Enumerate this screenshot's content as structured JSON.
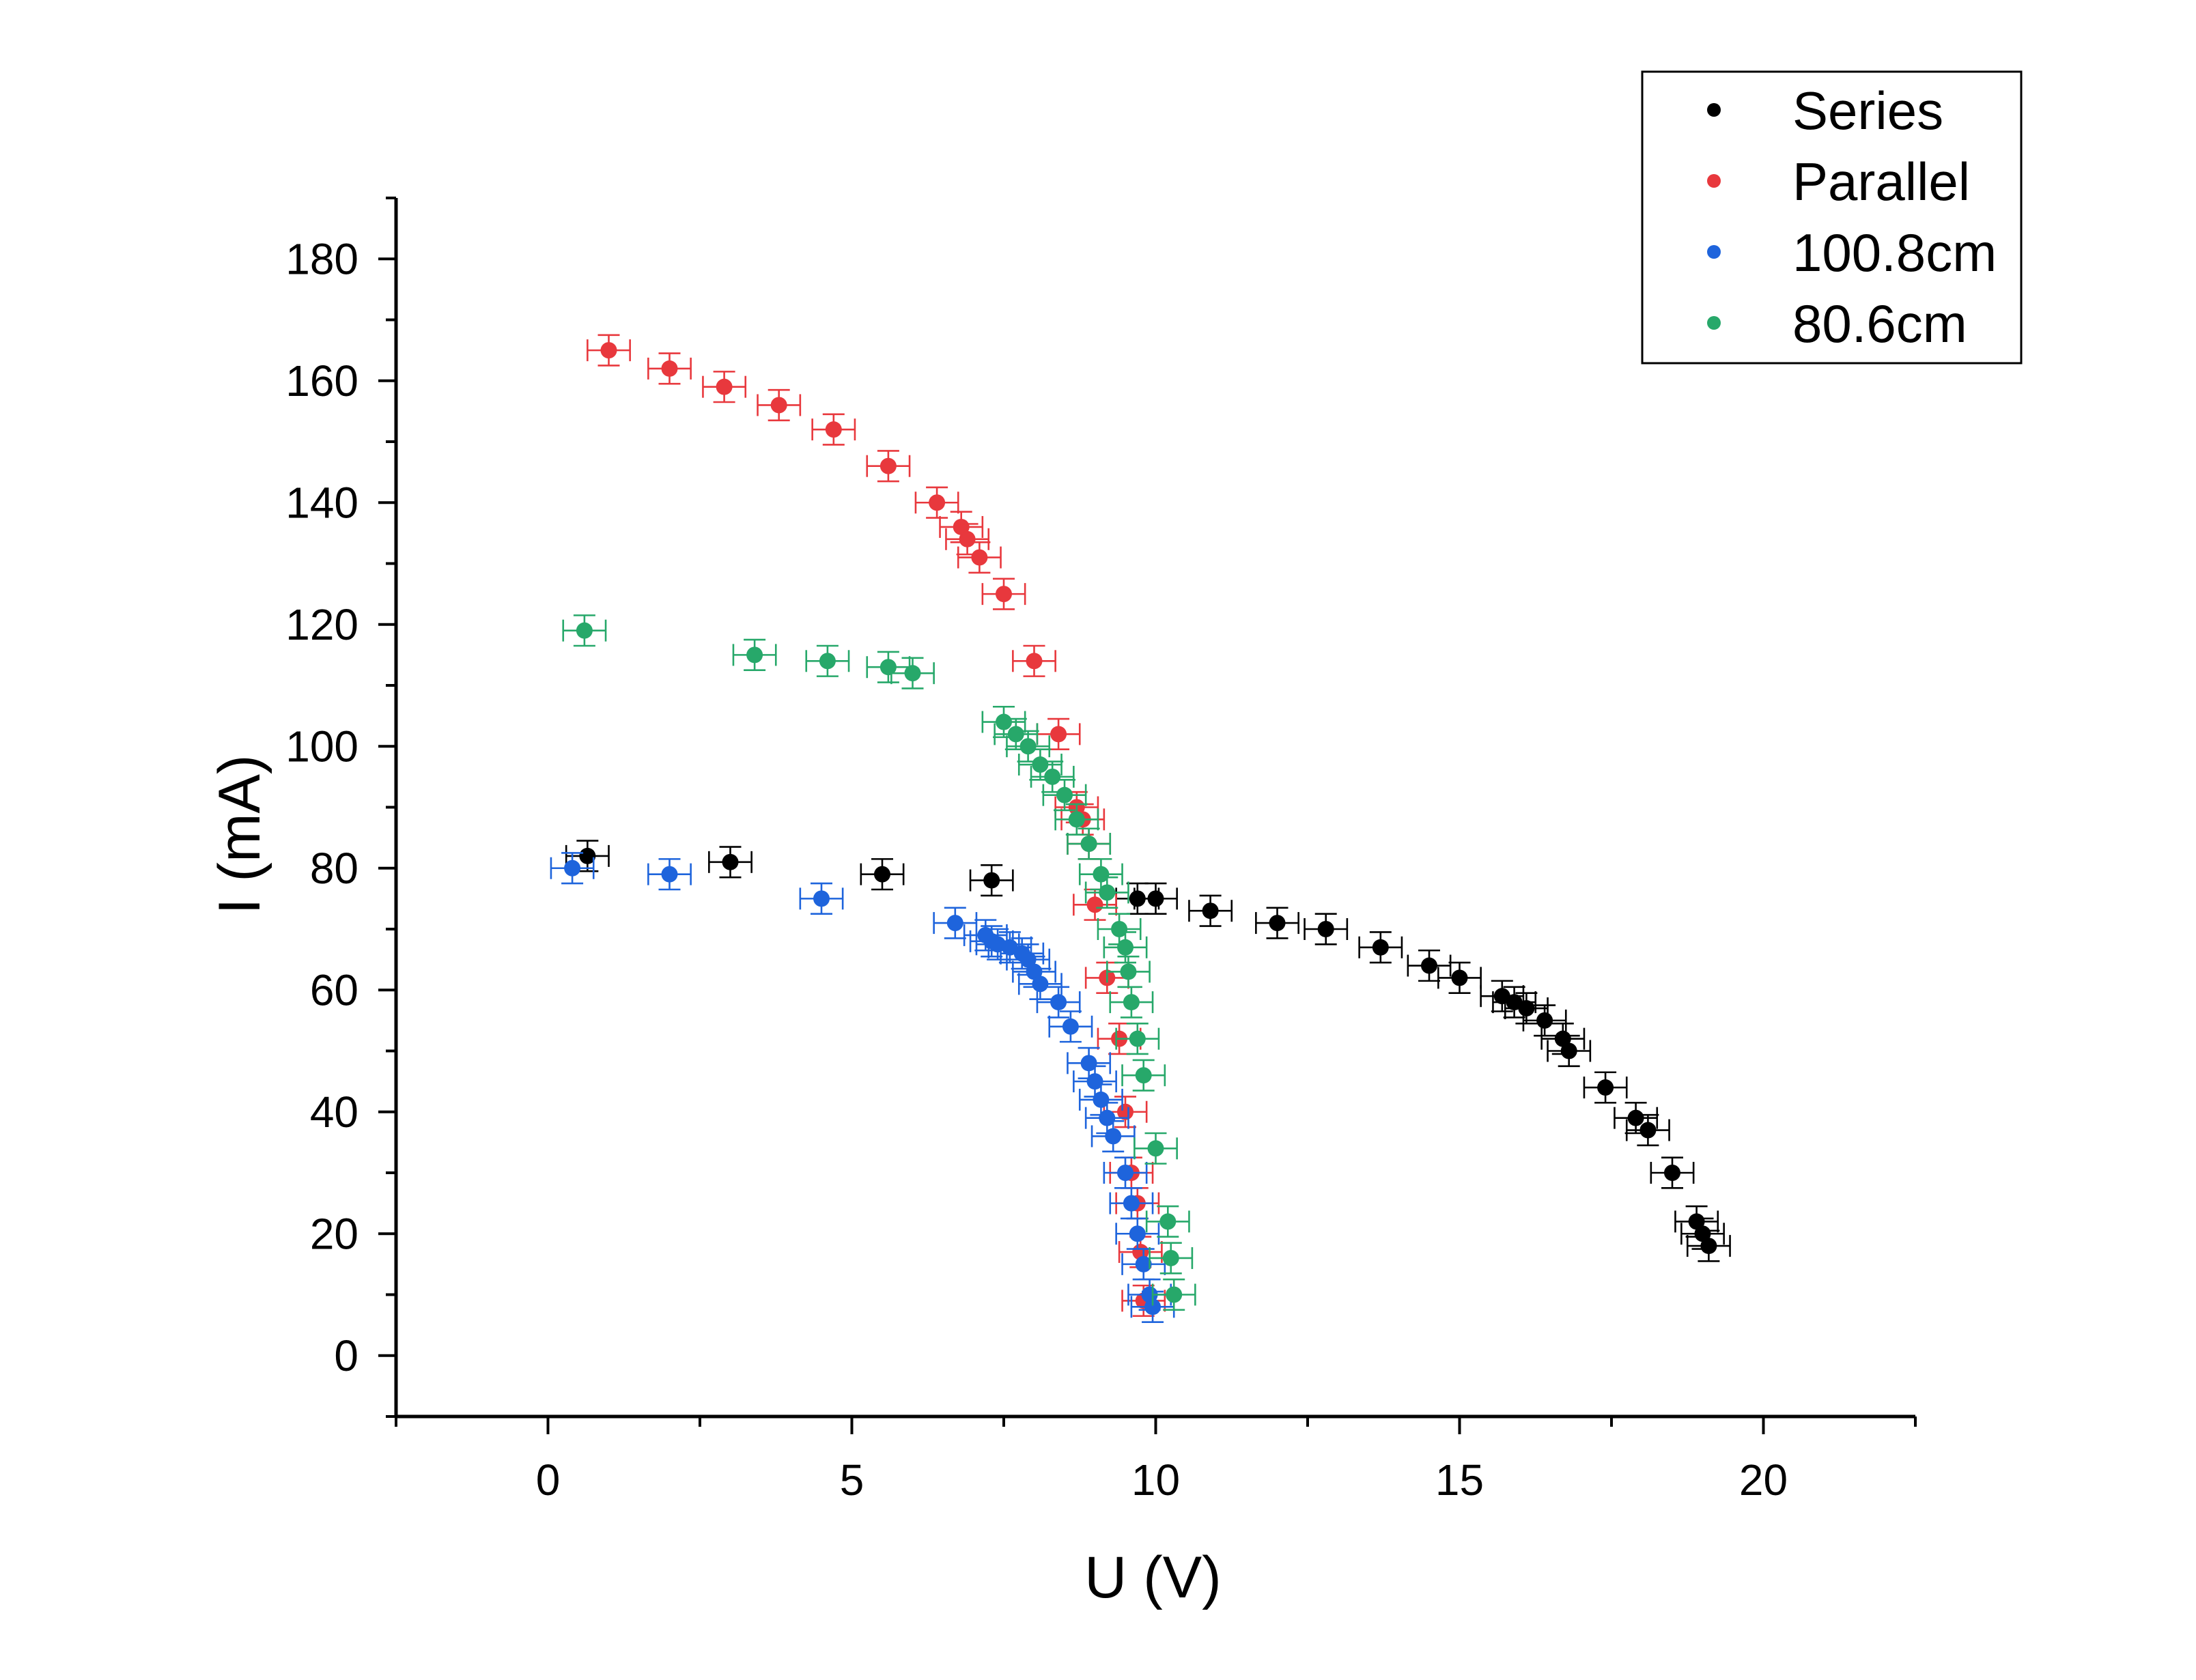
{
  "chart_data": {
    "type": "scatter",
    "title": "",
    "xlabel": "U (V)",
    "ylabel": "I (mA)",
    "xlim": [
      -2.5,
      22.5
    ],
    "ylim": [
      -10,
      190
    ],
    "xticks": [
      0,
      5,
      10,
      15,
      20
    ],
    "yticks": [
      0,
      20,
      40,
      60,
      80,
      100,
      120,
      140,
      160,
      180
    ],
    "x_minor_step": 2.5,
    "y_minor_step": 10,
    "error_bars": {
      "x": 0.35,
      "y": 2.5
    },
    "grid": false,
    "legend": "top-right",
    "series": [
      {
        "name": "Series",
        "color": "#000000",
        "x": [
          0.65,
          3.0,
          5.5,
          7.3,
          9.7,
          10.0,
          10.9,
          12.0,
          12.8,
          13.7,
          14.5,
          15.0,
          15.7,
          15.9,
          16.1,
          16.4,
          16.7,
          16.8,
          17.4,
          17.9,
          18.1,
          18.5,
          18.9,
          19.0,
          19.1
        ],
        "y": [
          82,
          81,
          79,
          78,
          75,
          75,
          73,
          71,
          70,
          67,
          64,
          62,
          59,
          58,
          57,
          55,
          52,
          50,
          44,
          39,
          37,
          30,
          22,
          20,
          18
        ]
      },
      {
        "name": "Parallel",
        "color": "#e8383d",
        "x": [
          1.0,
          2.0,
          2.9,
          3.8,
          4.7,
          5.6,
          6.4,
          6.8,
          6.9,
          7.1,
          7.5,
          8.0,
          8.4,
          8.7,
          8.8,
          8.9,
          9.0,
          9.2,
          9.4,
          9.5,
          9.6,
          9.7,
          9.75,
          9.8
        ],
        "y": [
          165,
          162,
          159,
          156,
          152,
          146,
          140,
          136,
          134,
          131,
          125,
          114,
          102,
          90,
          88,
          84,
          74,
          62,
          52,
          40,
          30,
          25,
          17,
          9
        ]
      },
      {
        "name": "100.8cm",
        "color": "#1e64dc",
        "x": [
          0.4,
          2.0,
          4.5,
          6.7,
          7.2,
          7.3,
          7.4,
          7.6,
          7.8,
          7.9,
          8.0,
          8.1,
          8.4,
          8.6,
          8.9,
          9.0,
          9.1,
          9.2,
          9.3,
          9.5,
          9.6,
          9.7,
          9.8,
          9.9,
          9.95
        ],
        "y": [
          80,
          79,
          75,
          71,
          69,
          68,
          67.5,
          67,
          66,
          65,
          63,
          61,
          58,
          54,
          48,
          45,
          42,
          39,
          36,
          30,
          25,
          20,
          15,
          10,
          8
        ]
      },
      {
        "name": "80.6cm",
        "color": "#27a86a",
        "x": [
          0.6,
          3.4,
          4.6,
          5.6,
          6.0,
          7.5,
          7.7,
          7.9,
          8.1,
          8.3,
          8.5,
          8.7,
          8.9,
          9.1,
          9.2,
          9.4,
          9.5,
          9.55,
          9.6,
          9.7,
          9.8,
          10.0,
          10.2,
          10.25,
          10.3
        ],
        "y": [
          119,
          115,
          114,
          113,
          112,
          104,
          102,
          100,
          97,
          95,
          92,
          88,
          84,
          79,
          76,
          70,
          67,
          63,
          58,
          52,
          46,
          34,
          22,
          16,
          10
        ]
      }
    ]
  }
}
